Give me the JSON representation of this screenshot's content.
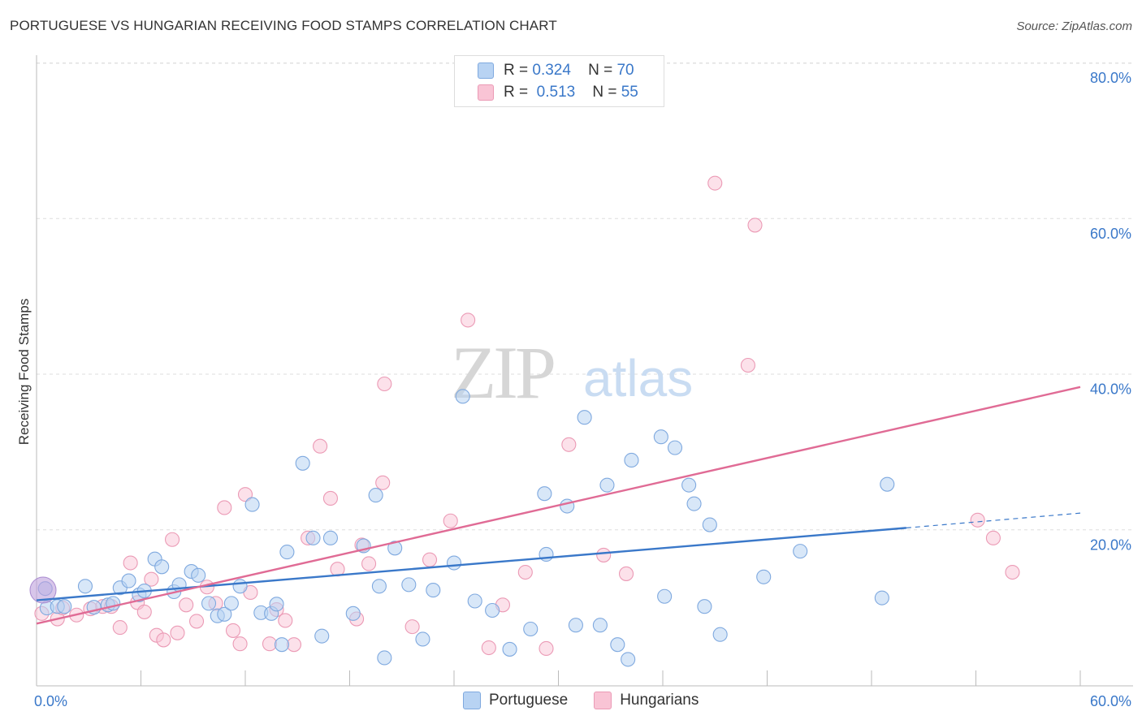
{
  "title": "PORTUGUESE VS HUNGARIAN RECEIVING FOOD STAMPS CORRELATION CHART",
  "source": "Source: ZipAtlas.com",
  "watermark": {
    "zip": "ZIP",
    "atlas": "atlas"
  },
  "legend": {
    "rows": [
      {
        "r_label": "R =",
        "r_value": "0.324",
        "n_label": "N =",
        "n_value": "70",
        "color": "#b8d3f3"
      },
      {
        "r_label": "R =",
        "r_value": "0.513",
        "n_label": "N =",
        "n_value": "55",
        "color": "#f9c4d5"
      }
    ]
  },
  "bottom_legend": [
    {
      "label": "Portuguese",
      "color": "#b8d3f3"
    },
    {
      "label": "Hungarians",
      "color": "#f9c4d5"
    }
  ],
  "chart_data": {
    "type": "scatter",
    "title": "PORTUGUESE VS HUNGARIAN RECEIVING FOOD STAMPS CORRELATION CHART",
    "xlabel": "",
    "ylabel": "Receiving Food Stamps",
    "xlim": [
      0,
      60
    ],
    "ylim": [
      0,
      80
    ],
    "x_tick_labels": [
      "0.0%",
      "60.0%"
    ],
    "y_tick_labels": [
      "20.0%",
      "40.0%",
      "60.0%",
      "80.0%"
    ],
    "y_tick_values": [
      20,
      40,
      60,
      80
    ],
    "grid": true,
    "legend_position": "top-center",
    "series": [
      {
        "name": "Portuguese",
        "color": "#5b8fd6",
        "fill": "#b8d3f3",
        "trend": {
          "x0": 0,
          "y0": 11.0,
          "x1": 50,
          "y1": 20.3,
          "dash_to_x": 60,
          "dash_to_y": 22.2
        },
        "points": [
          [
            0.5,
            12.5
          ],
          [
            0.6,
            10.0
          ],
          [
            1.2,
            10.2
          ],
          [
            1.6,
            10.2
          ],
          [
            2.8,
            12.8
          ],
          [
            3.3,
            10.1
          ],
          [
            4.1,
            10.4
          ],
          [
            4.4,
            10.6
          ],
          [
            4.8,
            12.6
          ],
          [
            5.3,
            13.5
          ],
          [
            5.9,
            11.7
          ],
          [
            6.2,
            12.2
          ],
          [
            6.8,
            16.3
          ],
          [
            7.2,
            15.3
          ],
          [
            7.9,
            12.1
          ],
          [
            8.2,
            13.0
          ],
          [
            8.9,
            14.7
          ],
          [
            9.3,
            14.2
          ],
          [
            9.9,
            10.6
          ],
          [
            10.4,
            9.0
          ],
          [
            10.8,
            9.2
          ],
          [
            11.2,
            10.6
          ],
          [
            11.7,
            12.8
          ],
          [
            12.4,
            23.3
          ],
          [
            12.9,
            9.4
          ],
          [
            13.5,
            9.3
          ],
          [
            13.8,
            10.5
          ],
          [
            14.1,
            5.3
          ],
          [
            14.4,
            17.2
          ],
          [
            15.3,
            28.6
          ],
          [
            15.9,
            19.0
          ],
          [
            16.4,
            6.4
          ],
          [
            16.9,
            19.0
          ],
          [
            18.2,
            9.3
          ],
          [
            18.8,
            18.0
          ],
          [
            19.5,
            24.5
          ],
          [
            19.7,
            12.8
          ],
          [
            20.0,
            3.6
          ],
          [
            20.6,
            17.7
          ],
          [
            21.4,
            13.0
          ],
          [
            22.2,
            6.0
          ],
          [
            22.8,
            12.3
          ],
          [
            24.0,
            15.8
          ],
          [
            24.5,
            37.2
          ],
          [
            25.2,
            10.9
          ],
          [
            26.2,
            9.7
          ],
          [
            27.2,
            4.7
          ],
          [
            28.4,
            7.3
          ],
          [
            29.2,
            24.7
          ],
          [
            29.3,
            16.9
          ],
          [
            30.5,
            23.1
          ],
          [
            31.0,
            7.8
          ],
          [
            31.5,
            34.5
          ],
          [
            32.4,
            7.8
          ],
          [
            32.8,
            25.8
          ],
          [
            33.4,
            5.3
          ],
          [
            34.0,
            3.4
          ],
          [
            34.2,
            29.0
          ],
          [
            35.9,
            32.0
          ],
          [
            36.1,
            11.5
          ],
          [
            36.7,
            30.6
          ],
          [
            37.5,
            25.8
          ],
          [
            37.8,
            23.4
          ],
          [
            38.4,
            10.2
          ],
          [
            38.7,
            20.7
          ],
          [
            39.3,
            6.6
          ],
          [
            41.8,
            14.0
          ],
          [
            43.9,
            17.3
          ],
          [
            48.6,
            11.3
          ],
          [
            48.9,
            25.9
          ]
        ]
      },
      {
        "name": "Hungarians",
        "color": "#e86b97",
        "fill": "#f9c4d5",
        "trend": {
          "x0": 0,
          "y0": 8.0,
          "x1": 60,
          "y1": 38.4
        },
        "points": [
          [
            0.3,
            9.3
          ],
          [
            1.2,
            8.6
          ],
          [
            1.5,
            10.0
          ],
          [
            2.3,
            9.1
          ],
          [
            3.1,
            9.9
          ],
          [
            3.8,
            10.2
          ],
          [
            4.3,
            10.2
          ],
          [
            4.8,
            7.5
          ],
          [
            5.4,
            15.8
          ],
          [
            5.8,
            10.7
          ],
          [
            6.2,
            9.5
          ],
          [
            6.6,
            13.7
          ],
          [
            6.9,
            6.5
          ],
          [
            7.3,
            5.9
          ],
          [
            7.8,
            18.8
          ],
          [
            8.1,
            6.8
          ],
          [
            8.6,
            10.4
          ],
          [
            9.2,
            8.3
          ],
          [
            9.8,
            12.7
          ],
          [
            10.3,
            10.6
          ],
          [
            10.8,
            22.9
          ],
          [
            11.3,
            7.1
          ],
          [
            11.7,
            5.4
          ],
          [
            12.0,
            24.6
          ],
          [
            12.3,
            12.0
          ],
          [
            13.4,
            5.4
          ],
          [
            13.8,
            9.8
          ],
          [
            14.3,
            8.4
          ],
          [
            14.8,
            5.3
          ],
          [
            15.6,
            19.0
          ],
          [
            16.3,
            30.8
          ],
          [
            16.9,
            24.1
          ],
          [
            17.3,
            15.0
          ],
          [
            18.4,
            8.6
          ],
          [
            18.7,
            18.1
          ],
          [
            19.1,
            15.7
          ],
          [
            19.9,
            26.1
          ],
          [
            20.0,
            38.8
          ],
          [
            21.6,
            7.6
          ],
          [
            22.6,
            16.2
          ],
          [
            23.8,
            21.2
          ],
          [
            24.8,
            47.0
          ],
          [
            26.0,
            4.9
          ],
          [
            26.8,
            10.4
          ],
          [
            28.1,
            14.6
          ],
          [
            29.3,
            4.8
          ],
          [
            30.6,
            31.0
          ],
          [
            32.6,
            16.8
          ],
          [
            33.9,
            14.4
          ],
          [
            39.0,
            64.6
          ],
          [
            41.3,
            59.2
          ],
          [
            40.9,
            41.2
          ],
          [
            54.1,
            21.3
          ],
          [
            56.1,
            14.6
          ],
          [
            55.0,
            19.0
          ]
        ]
      }
    ]
  }
}
